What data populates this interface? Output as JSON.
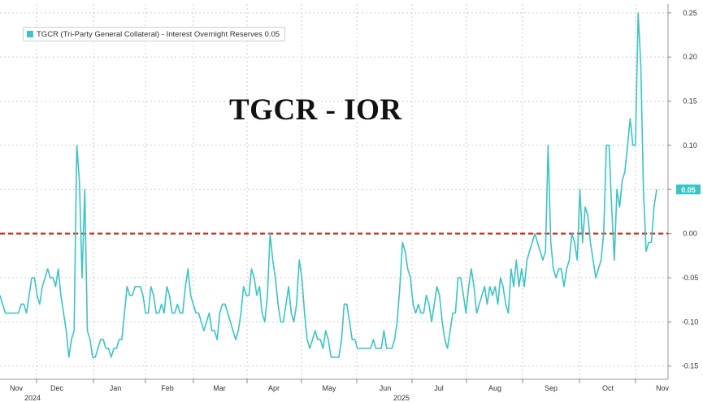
{
  "chart_data": {
    "type": "line",
    "title": "TGCR - IOR",
    "legend": {
      "label": "TGCR (Tri-Party General Collateral) - Interest Overnight Reserves",
      "last_value": "0.05",
      "placement": "top-left"
    },
    "y_ticks": [
      "0.25",
      "0.20",
      "0.15",
      "0.10",
      "0.05",
      "0.00",
      "-0.05",
      "-0.10",
      "-0.15"
    ],
    "ylim": [
      -0.165,
      0.26
    ],
    "y_axis_side": "right",
    "x_ticks": [
      {
        "label": "Nov",
        "year": "2024"
      },
      {
        "label": "Dec",
        "year": ""
      },
      {
        "label": "Jan",
        "year": ""
      },
      {
        "label": "Feb",
        "year": ""
      },
      {
        "label": "Mar",
        "year": ""
      },
      {
        "label": "Apr",
        "year": ""
      },
      {
        "label": "May",
        "year": ""
      },
      {
        "label": "Jun",
        "year": "2025"
      },
      {
        "label": "Jul",
        "year": ""
      },
      {
        "label": "Aug",
        "year": ""
      },
      {
        "label": "Sep",
        "year": ""
      },
      {
        "label": "Oct",
        "year": ""
      },
      {
        "label": "Nov",
        "year": ""
      }
    ],
    "reference_line": {
      "value": 0.0,
      "style": "dashed",
      "color": "#c0392b"
    },
    "grid": true,
    "series": [
      {
        "name": "TGCR (Tri-Party General Collateral) - Interest Overnight Reserves",
        "color": "#3cc4c4",
        "values": [
          -0.07,
          -0.08,
          -0.09,
          -0.09,
          -0.09,
          -0.09,
          -0.09,
          -0.09,
          -0.08,
          -0.08,
          -0.09,
          -0.07,
          -0.05,
          -0.05,
          -0.07,
          -0.08,
          -0.06,
          -0.05,
          -0.04,
          -0.05,
          -0.05,
          -0.06,
          -0.04,
          -0.07,
          -0.09,
          -0.11,
          -0.14,
          -0.12,
          -0.11,
          0.1,
          0.06,
          -0.05,
          0.05,
          -0.11,
          -0.12,
          -0.14,
          -0.14,
          -0.13,
          -0.12,
          -0.12,
          -0.13,
          -0.13,
          -0.14,
          -0.13,
          -0.13,
          -0.12,
          -0.12,
          -0.09,
          -0.06,
          -0.07,
          -0.07,
          -0.06,
          -0.06,
          -0.06,
          -0.07,
          -0.09,
          -0.09,
          -0.06,
          -0.07,
          -0.09,
          -0.09,
          -0.08,
          -0.09,
          -0.06,
          -0.07,
          -0.09,
          -0.09,
          -0.08,
          -0.09,
          -0.09,
          -0.06,
          -0.04,
          -0.07,
          -0.08,
          -0.09,
          -0.09,
          -0.1,
          -0.11,
          -0.1,
          -0.09,
          -0.11,
          -0.11,
          -0.12,
          -0.09,
          -0.08,
          -0.08,
          -0.09,
          -0.1,
          -0.11,
          -0.12,
          -0.11,
          -0.09,
          -0.06,
          -0.07,
          -0.07,
          -0.04,
          -0.05,
          -0.07,
          -0.06,
          -0.09,
          -0.1,
          -0.07,
          0.0,
          -0.03,
          -0.05,
          -0.08,
          -0.1,
          -0.1,
          -0.08,
          -0.06,
          -0.09,
          -0.1,
          -0.08,
          -0.03,
          -0.05,
          -0.09,
          -0.12,
          -0.13,
          -0.12,
          -0.11,
          -0.12,
          -0.12,
          -0.13,
          -0.11,
          -0.12,
          -0.14,
          -0.14,
          -0.14,
          -0.14,
          -0.12,
          -0.08,
          -0.08,
          -0.1,
          -0.12,
          -0.12,
          -0.13,
          -0.13,
          -0.13,
          -0.13,
          -0.13,
          -0.13,
          -0.12,
          -0.13,
          -0.13,
          -0.13,
          -0.11,
          -0.13,
          -0.13,
          -0.13,
          -0.12,
          -0.1,
          -0.06,
          -0.01,
          -0.02,
          -0.04,
          -0.05,
          -0.08,
          -0.09,
          -0.08,
          -0.09,
          -0.09,
          -0.07,
          -0.08,
          -0.1,
          -0.08,
          -0.06,
          -0.07,
          -0.1,
          -0.12,
          -0.13,
          -0.11,
          -0.09,
          -0.09,
          -0.05,
          -0.05,
          -0.07,
          -0.09,
          -0.06,
          -0.04,
          -0.06,
          -0.09,
          -0.08,
          -0.07,
          -0.06,
          -0.08,
          -0.06,
          -0.07,
          -0.06,
          -0.08,
          -0.05,
          -0.06,
          -0.08,
          -0.09,
          -0.04,
          -0.06,
          -0.03,
          -0.06,
          -0.04,
          -0.06,
          -0.03,
          -0.02,
          -0.01,
          0.0,
          -0.01,
          -0.02,
          -0.03,
          -0.02,
          0.1,
          -0.01,
          -0.04,
          -0.05,
          -0.04,
          -0.04,
          -0.06,
          -0.04,
          -0.03,
          0.0,
          -0.01,
          -0.03,
          0.05,
          -0.01,
          0.03,
          0.02,
          -0.01,
          -0.03,
          -0.05,
          -0.04,
          -0.03,
          0.0,
          0.1,
          0.1,
          0.03,
          -0.03,
          0.05,
          0.03,
          0.06,
          0.07,
          0.1,
          0.13,
          0.1,
          0.1,
          0.25,
          0.19,
          0.05,
          -0.02,
          -0.01,
          -0.01,
          0.03,
          0.05
        ]
      }
    ]
  }
}
